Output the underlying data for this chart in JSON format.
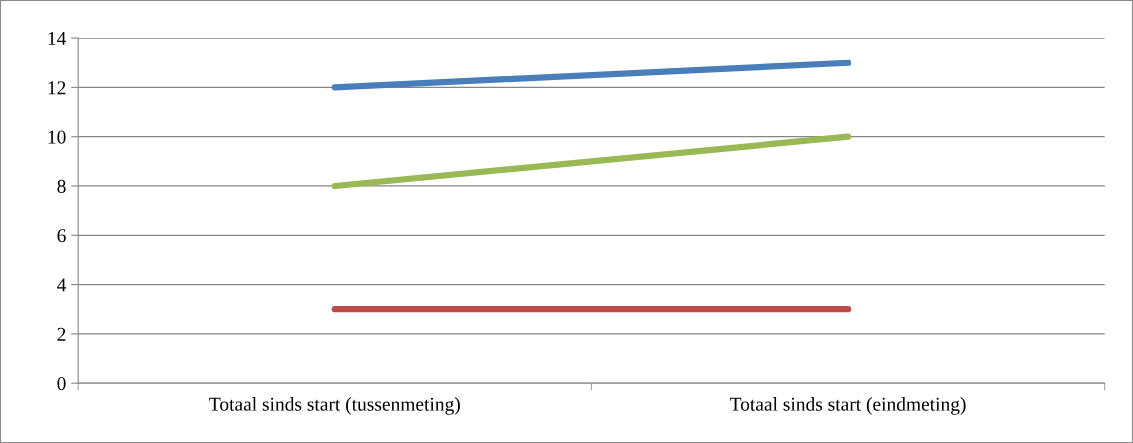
{
  "chart_data": {
    "type": "line",
    "categories": [
      "Totaal sinds start (tussenmeting)",
      "Totaal sinds start (eindmeting)"
    ],
    "series": [
      {
        "color": "#4a7ebb",
        "values": [
          12,
          13
        ]
      },
      {
        "color": "#98b954",
        "values": [
          8,
          10
        ]
      },
      {
        "color": "#be4b48",
        "values": [
          3,
          3
        ]
      }
    ],
    "ylim": [
      0,
      14
    ],
    "yticks": [
      0,
      2,
      4,
      6,
      8,
      10,
      12,
      14
    ],
    "grid": "y",
    "marker": "none",
    "line_style": "solid"
  }
}
